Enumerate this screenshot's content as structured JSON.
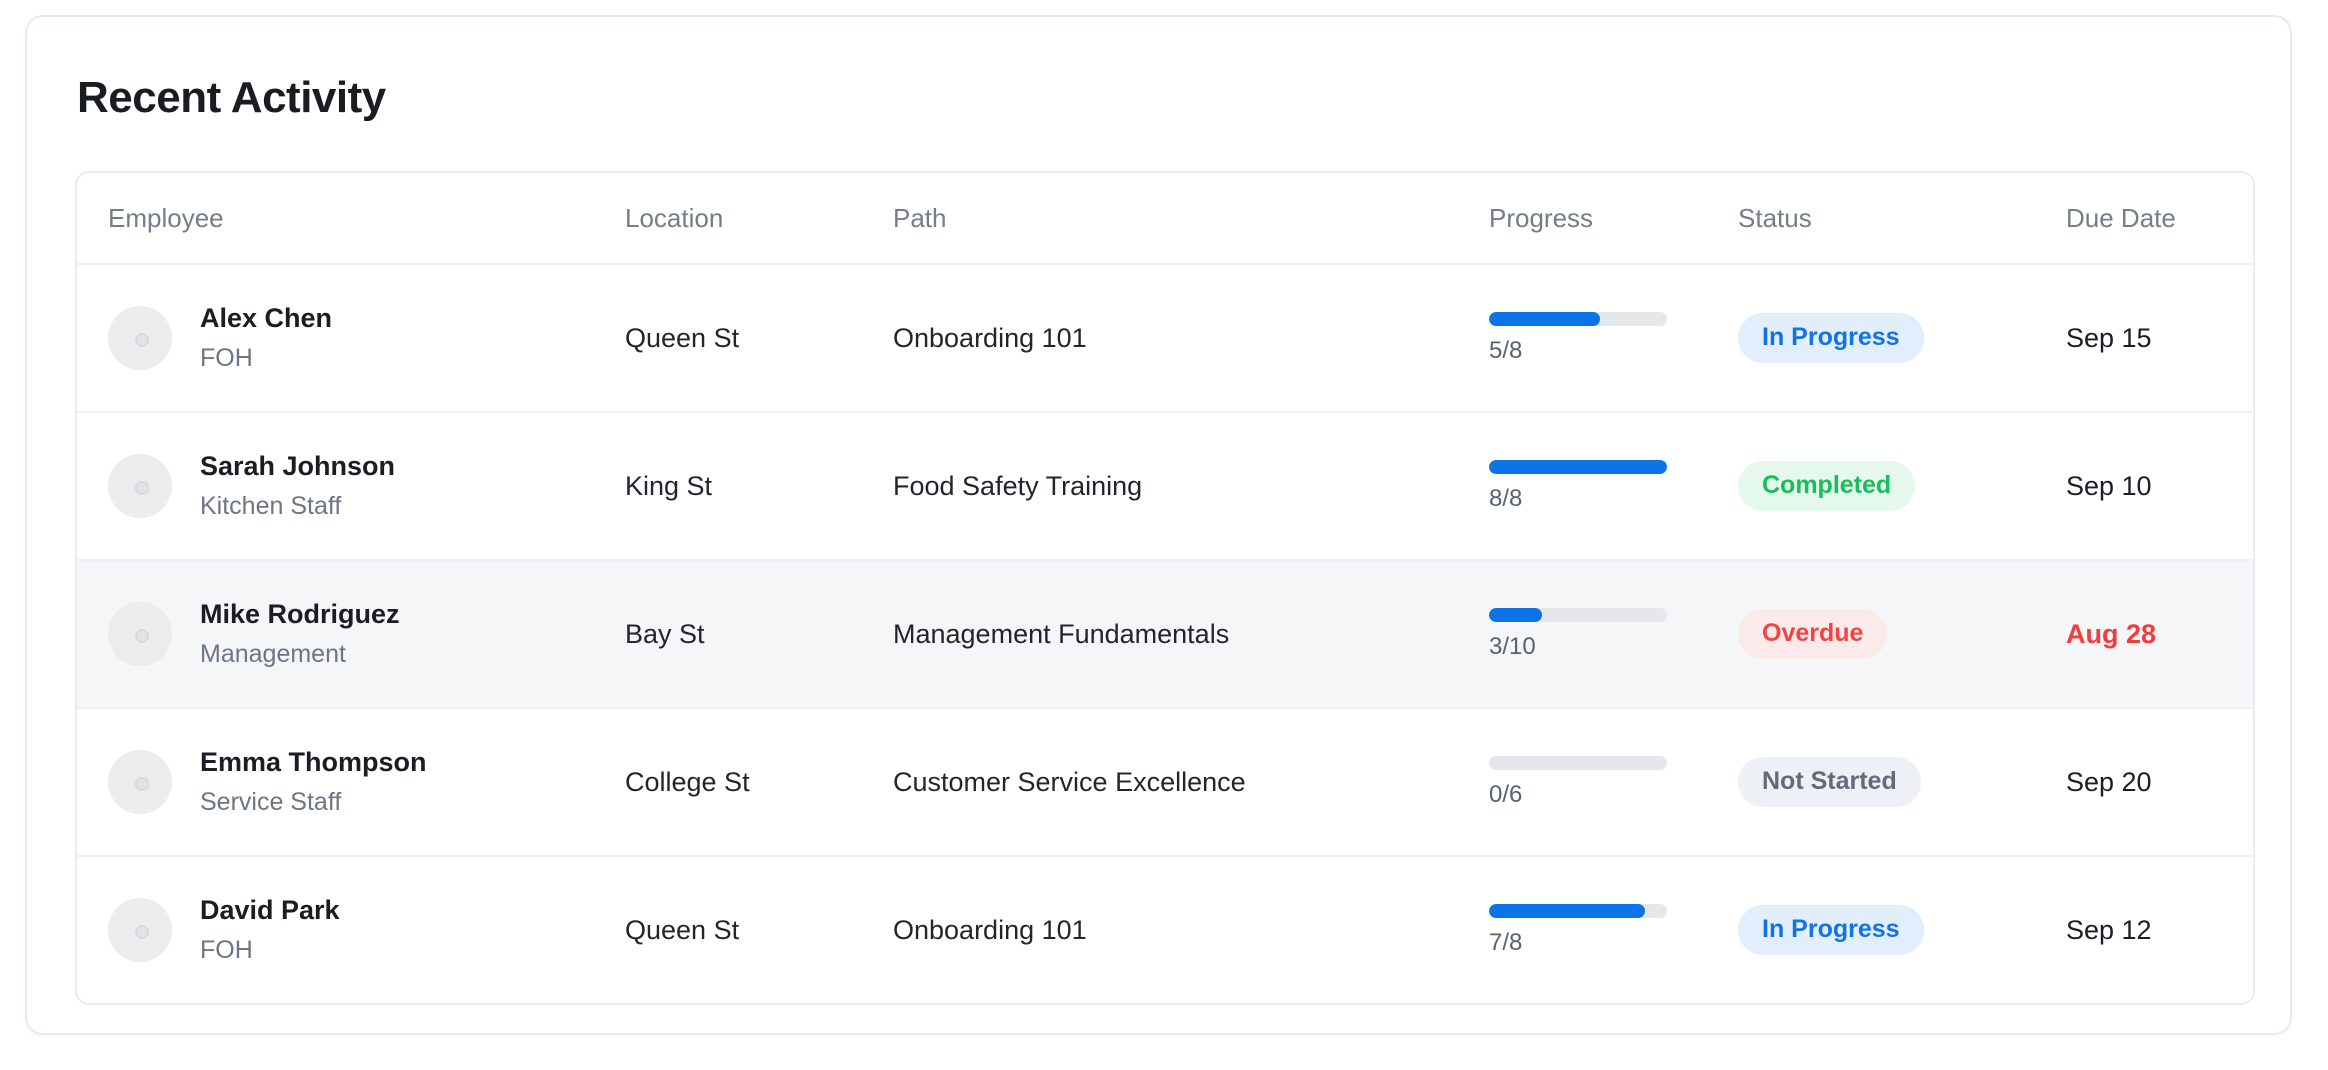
{
  "page": {
    "title": "Recent Activity"
  },
  "colors": {
    "accent_blue": "#0d74e8",
    "success_green": "#19bd5d",
    "danger_red": "#f24444",
    "neutral_gray": "#636b78",
    "progress_track": "#e5e7eb",
    "row_highlight": "#f5f6f8"
  },
  "table": {
    "columns": [
      "Employee",
      "Location",
      "Path",
      "Progress",
      "Status",
      "Due Date"
    ],
    "rows": [
      {
        "employee": {
          "name": "Alex Chen",
          "role": "FOH"
        },
        "location": "Queen St",
        "path": "Onboarding 101",
        "progress": {
          "fraction": "5/8",
          "completed": 5,
          "total": 8,
          "percent": 62.5
        },
        "status": {
          "label": "In Progress",
          "variant": "blue"
        },
        "due": {
          "date": "Sep 15",
          "overdue": false
        },
        "highlighted": false
      },
      {
        "employee": {
          "name": "Sarah Johnson",
          "role": "Kitchen Staff"
        },
        "location": "King St",
        "path": "Food Safety Training",
        "progress": {
          "fraction": "8/8",
          "completed": 8,
          "total": 8,
          "percent": 100
        },
        "status": {
          "label": "Completed",
          "variant": "green"
        },
        "due": {
          "date": "Sep 10",
          "overdue": false
        },
        "highlighted": false
      },
      {
        "employee": {
          "name": "Mike Rodriguez",
          "role": "Management"
        },
        "location": "Bay St",
        "path": "Management Fundamentals",
        "progress": {
          "fraction": "3/10",
          "completed": 3,
          "total": 10,
          "percent": 30
        },
        "status": {
          "label": "Overdue",
          "variant": "red"
        },
        "due": {
          "date": "Aug 28",
          "overdue": true
        },
        "highlighted": true
      },
      {
        "employee": {
          "name": "Emma Thompson",
          "role": "Service Staff"
        },
        "location": "College St",
        "path": "Customer Service Excellence",
        "progress": {
          "fraction": "0/6",
          "completed": 0,
          "total": 6,
          "percent": 0
        },
        "status": {
          "label": "Not Started",
          "variant": "gray"
        },
        "due": {
          "date": "Sep 20",
          "overdue": false
        },
        "highlighted": false
      },
      {
        "employee": {
          "name": "David Park",
          "role": "FOH"
        },
        "location": "Queen St",
        "path": "Onboarding 101",
        "progress": {
          "fraction": "7/8",
          "completed": 7,
          "total": 8,
          "percent": 87.5
        },
        "status": {
          "label": "In Progress",
          "variant": "blue"
        },
        "due": {
          "date": "Sep 12",
          "overdue": false
        },
        "highlighted": false
      }
    ]
  }
}
